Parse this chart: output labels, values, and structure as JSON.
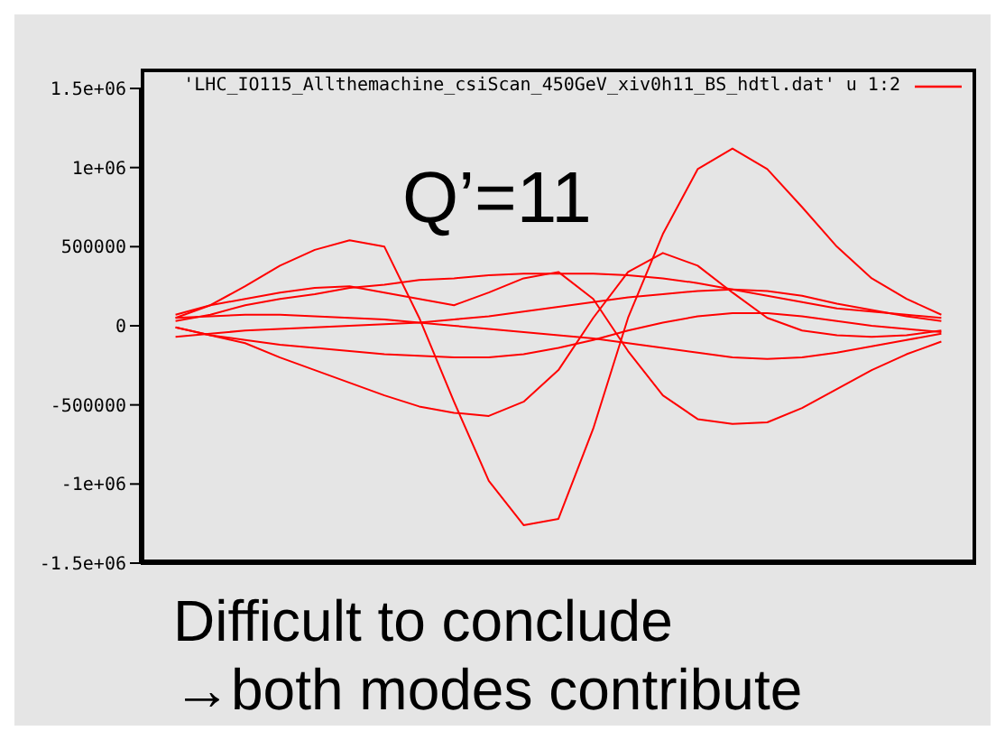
{
  "chart_data": {
    "type": "line",
    "categories": [
      null,
      null,
      null,
      null,
      null,
      null,
      null,
      null,
      null,
      null,
      null,
      null,
      null,
      null,
      null,
      null,
      null,
      null,
      null,
      null,
      null,
      null,
      null,
      null,
      null
    ],
    "ylim": [
      -1500000,
      1500000
    ],
    "yticks": [
      {
        "value": -1500000,
        "label": "-1.5e+06"
      },
      {
        "value": -1000000,
        "label": "-1e+06"
      },
      -500000,
      0,
      500000,
      {
        "value": 1000000,
        "label": "1e+06"
      },
      {
        "value": 1500000,
        "label": "1.5e+06"
      }
    ],
    "tick_labels": "y",
    "legend": "top right",
    "marker": "none",
    "line_style": "solid",
    "annotations": [
      "Q’=11",
      "Difficult to conclude",
      "→both modes contribute"
    ],
    "series": [
      {
        "name": "'LHC_IO115_Allthemachine_csiScan_450GeV_xiv0h11_BS_hdtl.dat' u 1:2",
        "color": "#ff0000",
        "values": [
          null,
          50000,
          130000,
          250000,
          380000,
          480000,
          540000,
          500000,
          50000,
          -480000,
          -980000,
          -1260000,
          -1220000,
          -650000,
          50000,
          580000,
          990000,
          1120000,
          990000,
          750000,
          500000,
          300000,
          170000,
          70000,
          null
        ]
      },
      {
        "color": "#ff0000",
        "values": [
          null,
          -10000,
          -60000,
          -110000,
          -200000,
          -280000,
          -360000,
          -440000,
          -510000,
          -550000,
          -570000,
          -480000,
          -280000,
          50000,
          340000,
          460000,
          380000,
          210000,
          50000,
          -30000,
          -60000,
          -70000,
          -60000,
          -30000,
          null
        ]
      },
      {
        "color": "#ff0000",
        "values": [
          null,
          70000,
          130000,
          170000,
          210000,
          240000,
          250000,
          210000,
          170000,
          130000,
          210000,
          300000,
          340000,
          170000,
          -160000,
          -440000,
          -590000,
          -620000,
          -610000,
          -520000,
          -400000,
          -280000,
          -180000,
          -100000,
          null
        ]
      },
      {
        "color": "#ff0000",
        "values": [
          null,
          30000,
          70000,
          130000,
          170000,
          200000,
          240000,
          260000,
          290000,
          300000,
          320000,
          330000,
          330000,
          330000,
          320000,
          300000,
          270000,
          230000,
          190000,
          150000,
          110000,
          90000,
          70000,
          50000,
          null
        ]
      },
      {
        "color": "#ff0000",
        "values": [
          null,
          -10000,
          -60000,
          -90000,
          -120000,
          -140000,
          -160000,
          -180000,
          -190000,
          -200000,
          -200000,
          -180000,
          -140000,
          -90000,
          -30000,
          20000,
          60000,
          80000,
          80000,
          60000,
          30000,
          0,
          -20000,
          -40000,
          null
        ]
      },
      {
        "color": "#ff0000",
        "values": [
          null,
          -70000,
          -50000,
          -30000,
          -20000,
          -10000,
          0,
          10000,
          20000,
          40000,
          60000,
          90000,
          120000,
          150000,
          180000,
          200000,
          220000,
          230000,
          220000,
          190000,
          140000,
          100000,
          60000,
          30000,
          null
        ]
      },
      {
        "color": "#ff0000",
        "values": [
          null,
          50000,
          60000,
          70000,
          70000,
          60000,
          50000,
          40000,
          20000,
          0,
          -20000,
          -40000,
          -60000,
          -80000,
          -110000,
          -140000,
          -170000,
          -200000,
          -210000,
          -200000,
          -170000,
          -130000,
          -90000,
          -50000,
          null
        ]
      }
    ]
  }
}
